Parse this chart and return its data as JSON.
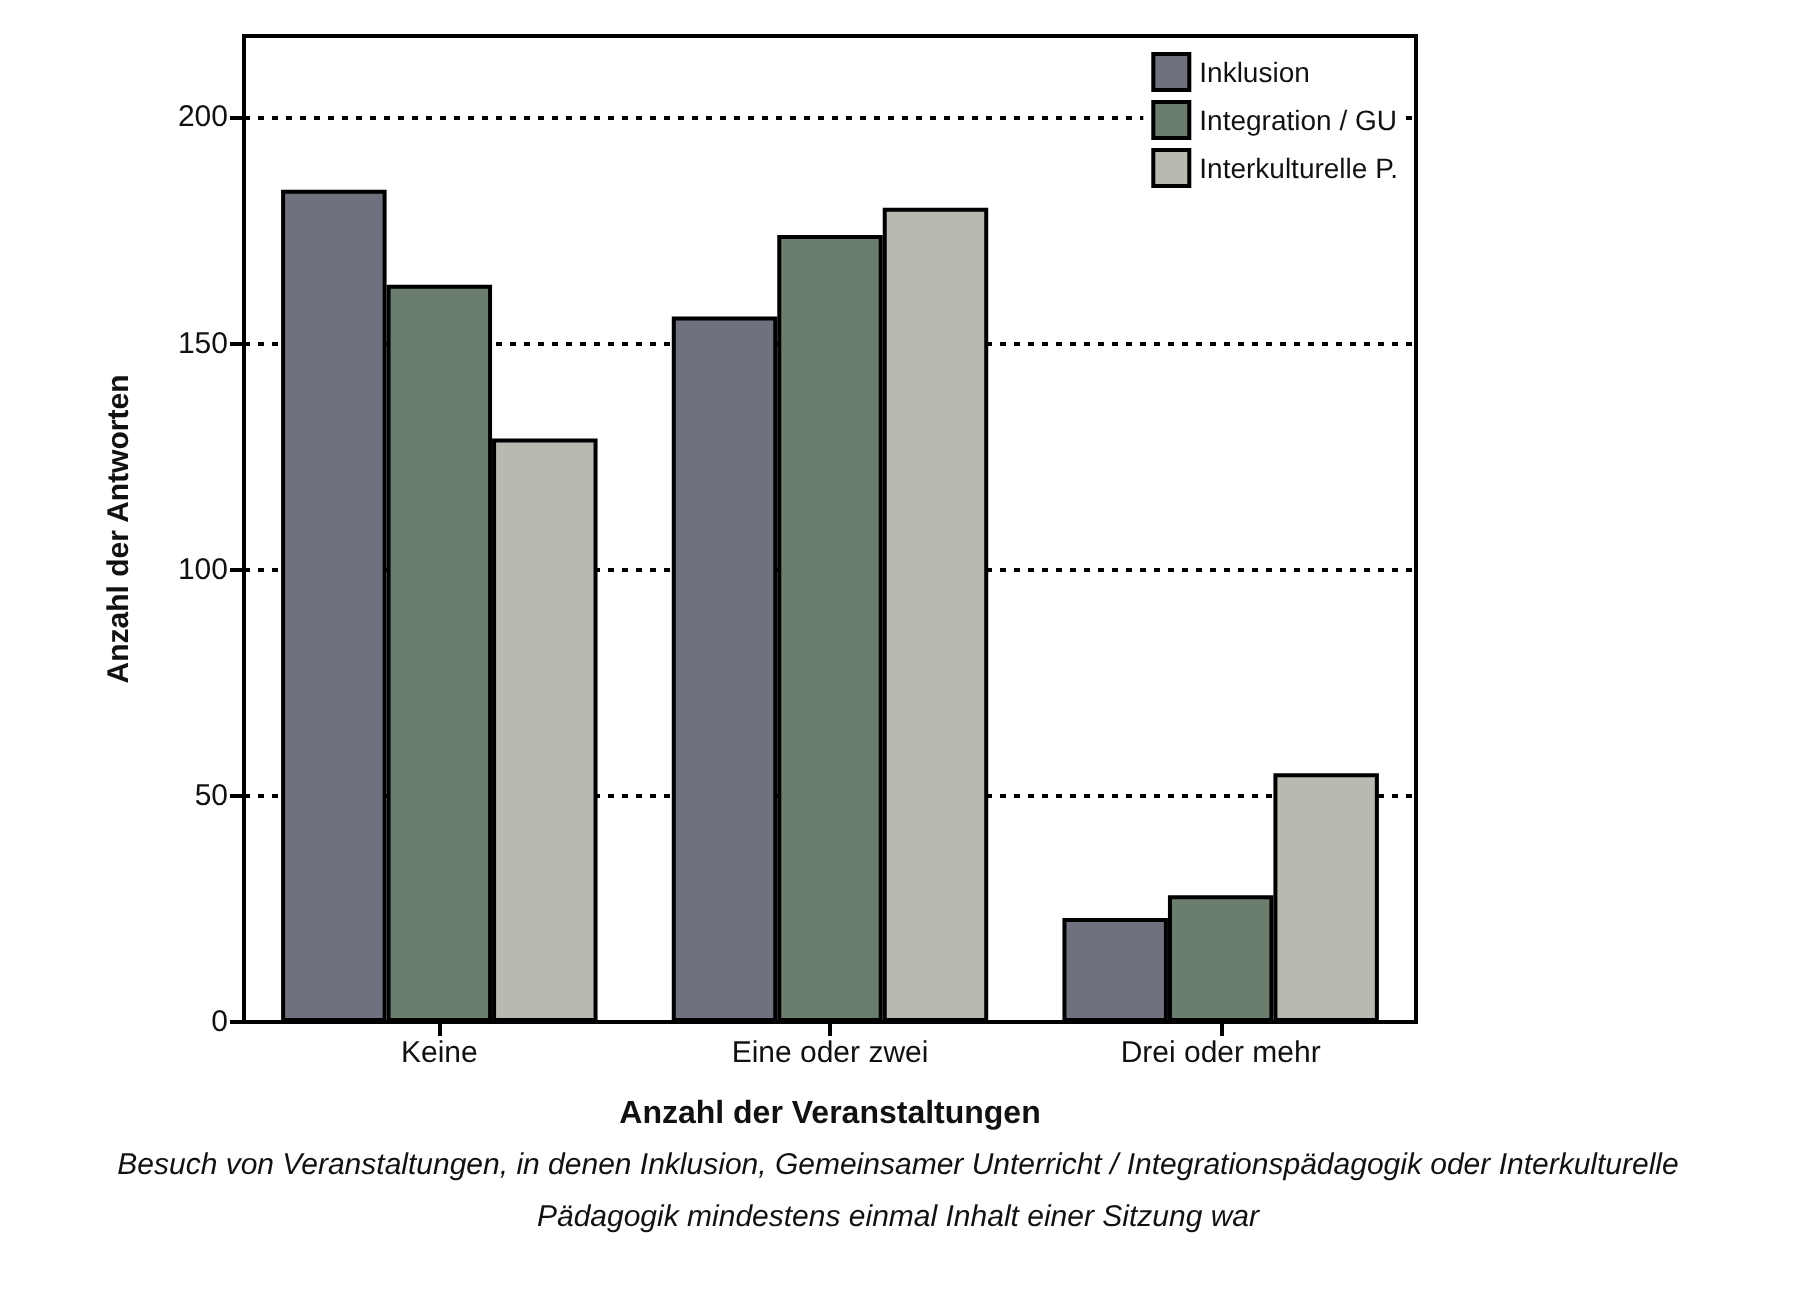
{
  "chart_data": {
    "type": "bar",
    "categories": [
      "Keine",
      "Eine oder zwei",
      "Drei oder mehr"
    ],
    "series": [
      {
        "name": "Inklusion",
        "color": "#6f717e",
        "values": [
          184,
          156,
          23
        ]
      },
      {
        "name": "Integration / GU",
        "color": "#6b7d6c",
        "values": [
          163,
          174,
          28
        ]
      },
      {
        "name": "Interkulturelle P.",
        "color": "#b9b9b1",
        "values": [
          129,
          180,
          55
        ]
      }
    ],
    "xlabel": "Anzahl der Veranstaltungen",
    "ylabel": "Anzahl der Antworten",
    "ylim": [
      0,
      218
    ],
    "yticks": [
      0,
      50,
      100,
      150,
      200
    ],
    "grid": "y",
    "legend": "top right",
    "annotations": [
      "Besuch von Veranstaltungen, in denen Inklusion, Gemeinsamer Unterricht / Integrationspädagogik oder Interkulturelle Pädagogik mindestens einmal Inhalt einer Sitzung war"
    ]
  }
}
